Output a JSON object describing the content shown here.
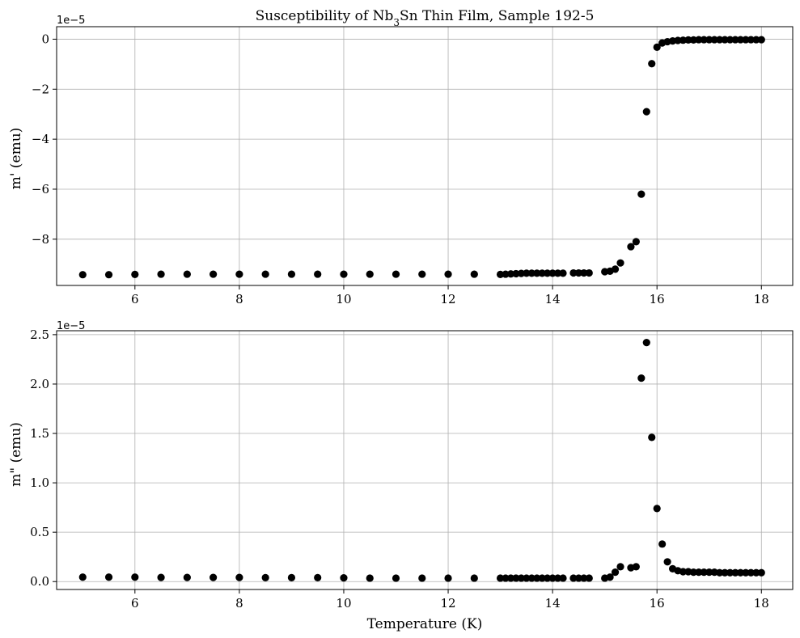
{
  "chart_data": [
    {
      "type": "scatter",
      "title_prefix": "Susceptibility of Nb",
      "title_subscript": "3",
      "title_suffix": "Sn Thin Film, Sample 192-5",
      "xlabel": "",
      "ylabel": "m' (emu)",
      "offset_label": "1e−5",
      "xlim": [
        4.5,
        18.6
      ],
      "ylim": [
        -9.85,
        0.5
      ],
      "xticks": [
        6,
        8,
        10,
        12,
        14,
        16,
        18
      ],
      "xtick_labels": [
        "6",
        "8",
        "10",
        "12",
        "14",
        "16",
        "18"
      ],
      "yticks": [
        -8,
        -6,
        -4,
        -2,
        0
      ],
      "ytick_labels": [
        "−8",
        "−6",
        "−4",
        "−2",
        "0"
      ],
      "grid": true,
      "marker_color": "#000000",
      "series": [
        {
          "x": [
            5.0,
            5.5,
            6.0,
            6.5,
            7.0,
            7.5,
            8.0,
            8.5,
            9.0,
            9.5,
            10.0,
            10.5,
            11.0,
            11.5,
            12.0,
            12.5,
            13.0,
            13.1,
            13.2,
            13.3,
            13.4,
            13.5,
            13.6,
            13.7,
            13.8,
            13.9,
            14.0,
            14.1,
            14.2,
            14.4,
            14.5,
            14.6,
            14.7,
            15.0,
            15.1,
            15.2,
            15.3,
            15.5,
            15.6,
            15.7,
            15.8,
            15.9,
            16.0,
            16.1,
            16.2,
            16.3,
            16.4,
            16.5,
            16.6,
            16.7,
            16.8,
            16.9,
            17.0,
            17.1,
            17.2,
            17.3,
            17.4,
            17.5,
            17.6,
            17.7,
            17.8,
            17.9,
            18.0
          ],
          "y": [
            -9.42,
            -9.42,
            -9.41,
            -9.4,
            -9.4,
            -9.4,
            -9.4,
            -9.4,
            -9.4,
            -9.4,
            -9.4,
            -9.4,
            -9.4,
            -9.4,
            -9.4,
            -9.4,
            -9.41,
            -9.4,
            -9.39,
            -9.38,
            -9.37,
            -9.36,
            -9.36,
            -9.36,
            -9.36,
            -9.36,
            -9.36,
            -9.36,
            -9.36,
            -9.35,
            -9.35,
            -9.35,
            -9.35,
            -9.3,
            -9.28,
            -9.2,
            -8.95,
            -8.3,
            -8.1,
            -6.2,
            -2.9,
            -0.98,
            -0.32,
            -0.15,
            -0.1,
            -0.07,
            -0.05,
            -0.04,
            -0.03,
            -0.03,
            -0.02,
            -0.02,
            -0.02,
            -0.02,
            -0.02,
            -0.02,
            -0.02,
            -0.02,
            -0.02,
            -0.02,
            -0.02,
            -0.02,
            -0.02
          ]
        }
      ]
    },
    {
      "type": "scatter",
      "title": "",
      "xlabel": "Temperature (K)",
      "ylabel": "m\" (emu)",
      "offset_label": "1e−5",
      "xlim": [
        4.5,
        18.6
      ],
      "ylim": [
        -0.08,
        2.54
      ],
      "xticks": [
        6,
        8,
        10,
        12,
        14,
        16,
        18
      ],
      "xtick_labels": [
        "6",
        "8",
        "10",
        "12",
        "14",
        "16",
        "18"
      ],
      "yticks": [
        0.0,
        0.5,
        1.0,
        1.5,
        2.0,
        2.5
      ],
      "ytick_labels": [
        "0.0",
        "0.5",
        "1.0",
        "1.5",
        "2.0",
        "2.5"
      ],
      "grid": true,
      "marker_color": "#000000",
      "series": [
        {
          "x": [
            5.0,
            5.5,
            6.0,
            6.5,
            7.0,
            7.5,
            8.0,
            8.5,
            9.0,
            9.5,
            10.0,
            10.5,
            11.0,
            11.5,
            12.0,
            12.5,
            13.0,
            13.1,
            13.2,
            13.3,
            13.4,
            13.5,
            13.6,
            13.7,
            13.8,
            13.9,
            14.0,
            14.1,
            14.2,
            14.4,
            14.5,
            14.6,
            14.7,
            15.0,
            15.1,
            15.2,
            15.3,
            15.5,
            15.6,
            15.7,
            15.8,
            15.9,
            16.0,
            16.1,
            16.2,
            16.3,
            16.4,
            16.5,
            16.6,
            16.7,
            16.8,
            16.9,
            17.0,
            17.1,
            17.2,
            17.3,
            17.4,
            17.5,
            17.6,
            17.7,
            17.8,
            17.9,
            18.0
          ],
          "y": [
            0.045,
            0.045,
            0.045,
            0.042,
            0.042,
            0.042,
            0.042,
            0.04,
            0.04,
            0.04,
            0.038,
            0.035,
            0.035,
            0.035,
            0.035,
            0.035,
            0.035,
            0.035,
            0.035,
            0.035,
            0.035,
            0.035,
            0.035,
            0.035,
            0.035,
            0.035,
            0.035,
            0.035,
            0.035,
            0.035,
            0.035,
            0.035,
            0.035,
            0.035,
            0.045,
            0.095,
            0.15,
            0.14,
            0.15,
            2.06,
            2.42,
            1.46,
            0.74,
            0.38,
            0.2,
            0.13,
            0.11,
            0.1,
            0.1,
            0.095,
            0.095,
            0.095,
            0.095,
            0.095,
            0.09,
            0.09,
            0.09,
            0.09,
            0.09,
            0.09,
            0.09,
            0.09,
            0.09
          ]
        }
      ]
    }
  ]
}
